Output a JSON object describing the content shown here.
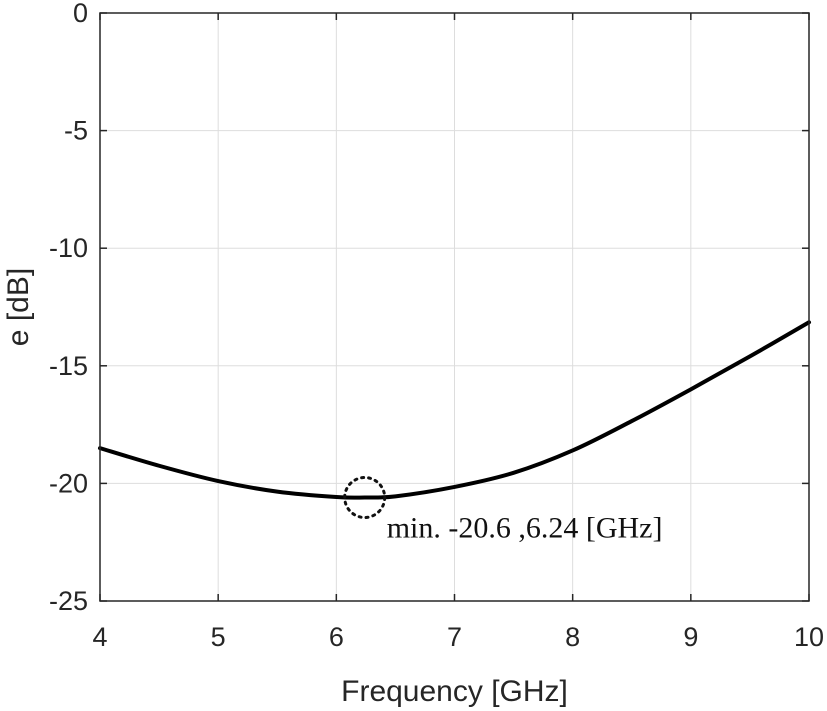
{
  "chart_data": {
    "type": "line",
    "xlabel": "Frequency [GHz]",
    "ylabel": "e [dB]",
    "xlim": [
      4,
      10
    ],
    "ylim": [
      -25,
      0
    ],
    "xticks": [
      "4",
      "5",
      "6",
      "7",
      "8",
      "9",
      "10"
    ],
    "yticks": [
      "0",
      "-5",
      "-10",
      "-15",
      "-20",
      "-25"
    ],
    "grid": true,
    "series": [
      {
        "color": "#000000",
        "x": [
          4.0,
          4.5,
          5.0,
          5.5,
          6.0,
          6.24,
          6.5,
          7.0,
          7.5,
          8.0,
          8.5,
          9.0,
          9.5,
          10.0
        ],
        "y": [
          -18.5,
          -19.25,
          -19.9,
          -20.35,
          -20.58,
          -20.6,
          -20.55,
          -20.15,
          -19.55,
          -18.6,
          -17.35,
          -16.0,
          -14.6,
          -13.15
        ]
      }
    ],
    "annotation": {
      "text": "min. -20.6 ,6.24 [GHz]",
      "x": 6.24,
      "y": -20.6
    }
  }
}
